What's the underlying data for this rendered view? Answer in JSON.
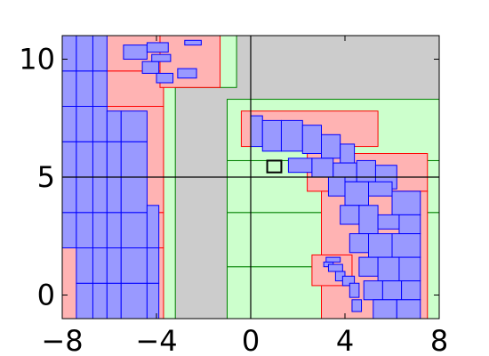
{
  "chart_data": {
    "type": "rect",
    "xlim": [
      -8,
      8
    ],
    "ylim": [
      -1,
      11
    ],
    "xticks": [
      {
        "value": -8,
        "label": "−8"
      },
      {
        "value": -4,
        "label": "−4"
      },
      0,
      4,
      8
    ],
    "yticks": [
      0,
      5,
      10
    ],
    "layers": [
      {
        "fill": "#cccccc",
        "stroke": "none",
        "rects": [
          [
            -3.2,
            -1,
            8,
            11
          ]
        ]
      },
      {
        "fill": "#ccffcc",
        "stroke": "#008000",
        "rects": [
          [
            -3.8,
            -1,
            -3.2,
            11
          ],
          [
            -3.2,
            8.8,
            -0.6,
            11
          ],
          [
            -1,
            -1,
            3.5,
            1.2
          ],
          [
            -1,
            1.2,
            3.5,
            3.5
          ],
          [
            3.5,
            -1,
            8,
            3.5
          ],
          [
            -1,
            3.5,
            8,
            5.7
          ],
          [
            -1,
            5.7,
            8,
            8.3
          ]
        ]
      },
      {
        "fill": "#ffb3b3",
        "stroke": "#ff0000",
        "rects": [
          [
            -8,
            -1,
            -3.7,
            2
          ],
          [
            -8,
            2,
            -3.7,
            3.5
          ],
          [
            -8,
            3.5,
            -3.7,
            8
          ],
          [
            -8,
            8,
            -3.7,
            9.5
          ],
          [
            -8,
            9.5,
            -3.7,
            11
          ],
          [
            -3.85,
            8.8,
            -1.3,
            11
          ],
          [
            -0.4,
            6.3,
            5.4,
            7.8
          ],
          [
            2.4,
            4.4,
            7.5,
            6.0
          ],
          [
            3.0,
            -1,
            7.5,
            4.4
          ],
          [
            2.6,
            0.4,
            4.3,
            1.7
          ]
        ]
      },
      {
        "fill": "#9999ff",
        "stroke": "#0000ff",
        "rects": [
          [
            -8,
            2,
            -7.4,
            3.5
          ],
          [
            -8,
            3.5,
            -7.4,
            5
          ],
          [
            -8,
            5,
            -7.4,
            6.5
          ],
          [
            -8,
            6.5,
            -7.4,
            8
          ],
          [
            -8,
            8,
            -7.4,
            9.5
          ],
          [
            -8,
            9.5,
            -7.4,
            11
          ],
          [
            -7.4,
            -1,
            -6.7,
            0.5
          ],
          [
            -7.4,
            0.5,
            -6.7,
            2
          ],
          [
            -7.4,
            2,
            -6.7,
            3.5
          ],
          [
            -7.4,
            3.5,
            -6.7,
            5
          ],
          [
            -7.4,
            5,
            -6.7,
            6.5
          ],
          [
            -7.4,
            6.5,
            -6.7,
            8
          ],
          [
            -7.4,
            8,
            -6.7,
            9.5
          ],
          [
            -7.4,
            9.5,
            -6.7,
            11
          ],
          [
            -6.7,
            -1,
            -6.1,
            0.5
          ],
          [
            -6.7,
            0.5,
            -6.1,
            2
          ],
          [
            -6.7,
            2,
            -6.1,
            3.5
          ],
          [
            -6.7,
            3.5,
            -6.1,
            5
          ],
          [
            -6.7,
            5,
            -6.1,
            6.5
          ],
          [
            -6.7,
            6.5,
            -6.1,
            8
          ],
          [
            -6.7,
            8,
            -6.1,
            9.5
          ],
          [
            -6.7,
            9.5,
            -6.1,
            11
          ],
          [
            -6.1,
            -1,
            -5.5,
            0.5
          ],
          [
            -6.1,
            0.5,
            -5.5,
            2
          ],
          [
            -6.1,
            2,
            -5.5,
            3.5
          ],
          [
            -6.1,
            3.5,
            -5.5,
            5
          ],
          [
            -6.1,
            5,
            -5.5,
            6.5
          ],
          [
            -6.1,
            6.5,
            -5.5,
            7.8
          ],
          [
            -5.5,
            -1,
            -4.4,
            0.5
          ],
          [
            -5.5,
            0.5,
            -4.4,
            2
          ],
          [
            -5.5,
            2,
            -4.4,
            3.5
          ],
          [
            -5.5,
            3.5,
            -4.4,
            5
          ],
          [
            -5.5,
            5,
            -4.4,
            6.5
          ],
          [
            -5.5,
            6.5,
            -4.4,
            7.8
          ],
          [
            -4.4,
            -1,
            -3.9,
            0.5
          ],
          [
            -4.4,
            0.5,
            -3.9,
            2
          ],
          [
            -4.4,
            2,
            -3.9,
            3.8
          ],
          [
            -5.4,
            10,
            -4.4,
            10.6
          ],
          [
            -4.4,
            10.3,
            -3.5,
            10.7
          ],
          [
            -4.6,
            9.4,
            -3.9,
            9.9
          ],
          [
            -4,
            9,
            -3.3,
            9.4
          ],
          [
            -3.1,
            9.2,
            -2.3,
            9.6
          ],
          [
            -2.8,
            10.6,
            -2.1,
            10.8
          ],
          [
            -4.2,
            9.9,
            -3.4,
            10.2
          ],
          [
            0,
            6.3,
            0.5,
            7.6
          ],
          [
            0.5,
            6.1,
            1.3,
            7.4
          ],
          [
            1.3,
            6.1,
            2.2,
            7.4
          ],
          [
            2.2,
            6.0,
            3.0,
            7.2
          ],
          [
            3.0,
            5.8,
            3.8,
            6.8
          ],
          [
            3.8,
            5.6,
            4.4,
            6.4
          ],
          [
            1.6,
            5.2,
            2.6,
            5.8
          ],
          [
            2.6,
            5.0,
            3.5,
            5.8
          ],
          [
            3.5,
            4.8,
            4.5,
            5.6
          ],
          [
            4.5,
            4.8,
            5.3,
            5.7
          ],
          [
            5.3,
            4.5,
            6.2,
            5.5
          ],
          [
            3.3,
            4.2,
            4.0,
            5.0
          ],
          [
            4.0,
            3.8,
            5.0,
            4.8
          ],
          [
            5.0,
            4.2,
            6.0,
            4.8
          ],
          [
            6.0,
            3.4,
            7.2,
            4.4
          ],
          [
            3.8,
            3.0,
            4.6,
            3.8
          ],
          [
            4.6,
            2.6,
            5.4,
            3.8
          ],
          [
            5.4,
            2.8,
            6.3,
            3.4
          ],
          [
            6.3,
            2.6,
            7.2,
            3.4
          ],
          [
            4.2,
            1.8,
            5.0,
            2.6
          ],
          [
            5.0,
            1.6,
            6.0,
            2.6
          ],
          [
            6.0,
            1.6,
            7.2,
            2.6
          ],
          [
            4.6,
            0.8,
            5.4,
            1.6
          ],
          [
            5.4,
            0.6,
            6.3,
            1.6
          ],
          [
            6.3,
            0.6,
            7.2,
            1.6
          ],
          [
            4.8,
            -0.2,
            5.6,
            0.6
          ],
          [
            5.6,
            -0.2,
            6.4,
            0.6
          ],
          [
            6.4,
            -0.2,
            7.2,
            0.6
          ],
          [
            5.2,
            -1,
            6.2,
            -0.2
          ],
          [
            6.2,
            -1,
            7.2,
            -0.2
          ],
          [
            3.1,
            1.2,
            3.5,
            1.4
          ],
          [
            3.3,
            1.0,
            3.9,
            1.3
          ],
          [
            3.6,
            0.6,
            4.0,
            1.0
          ],
          [
            3.9,
            0.4,
            4.4,
            0.8
          ],
          [
            4.2,
            -0.1,
            4.6,
            0.5
          ],
          [
            4.3,
            -0.7,
            4.7,
            -0.2
          ],
          [
            3.2,
            1.4,
            3.8,
            1.6
          ]
        ]
      },
      {
        "fill": "none",
        "stroke": "#000000",
        "rects": [
          [
            0.7,
            5.2,
            1.3,
            5.7
          ]
        ]
      }
    ],
    "hlines": [
      5
    ],
    "vlines": [
      0
    ]
  }
}
